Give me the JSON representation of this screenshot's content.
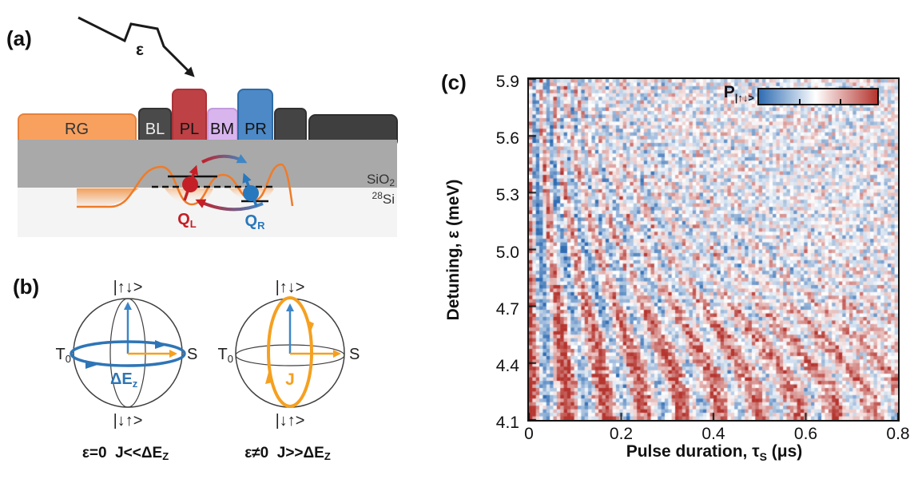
{
  "panel_a": {
    "label": "(a)",
    "pulse_label": "ε",
    "gates": [
      {
        "label": "RG",
        "color": "#F8A15F",
        "border": "#E5823C",
        "text_color": "#333333"
      },
      {
        "label": "BL",
        "color": "#4A4A4A",
        "border": "#353535",
        "text_color": "#EDEDED"
      },
      {
        "label": "PL",
        "color": "#BE4145",
        "border": "#A93438",
        "text_color": "#141414"
      },
      {
        "label": "BM",
        "color": "#D9B5EE",
        "border": "#C39BDD",
        "text_color": "#141414"
      },
      {
        "label": "PR",
        "color": "#4C89C6",
        "border": "#2F6BA7",
        "text_color": "#141414"
      },
      {
        "label": "",
        "color": "#444444",
        "border": "#323232",
        "text_color": "#EDEDED"
      },
      {
        "label": "",
        "color": "#3F3F3F",
        "border": "#2E2E2E",
        "text_color": "#EDEDED"
      }
    ],
    "oxide_label": {
      "main": "SiO",
      "sub": "2"
    },
    "substrate_label": {
      "sup": "28",
      "main": "Si"
    },
    "qubit_left": {
      "main": "Q",
      "sub": "L",
      "color": "#C41F26"
    },
    "qubit_right": {
      "main": "Q",
      "sub": "R",
      "color": "#2878BE"
    },
    "colors": {
      "oxide": "#A9A9A9",
      "substrate": "#F4F4F4",
      "potential_curve": "#F07B28"
    }
  },
  "panel_b": {
    "label": "(b)",
    "sphere_left": {
      "top_state": "|↑↓>",
      "bottom_state": "|↓↑>",
      "left_main": "T",
      "left_sub": "0",
      "right_state": "S",
      "rotation_main": "ΔE",
      "rotation_sub": "z",
      "rotation_color": "#2E75B6",
      "caption_main": "ε=0  J<<ΔE",
      "caption_sub": "Z"
    },
    "sphere_right": {
      "top_state": "|↑↓>",
      "bottom_state": "|↓↑>",
      "left_main": "T",
      "left_sub": "0",
      "right_state": "S",
      "rotation_main": "J",
      "rotation_sub": "",
      "rotation_color": "#F5A020",
      "caption_main": "ε≠0  J>>ΔE",
      "caption_sub": "Z"
    },
    "colors": {
      "z_axis_arrow": "#3E86C8",
      "x_axis_arrow": "#F5A020",
      "wireframe": "#3F3F3F"
    }
  },
  "panel_c": {
    "label": "(c)"
  },
  "chart_data": {
    "type": "heatmap",
    "title": "",
    "xlabel_parts": {
      "pre": "Pulse duration, τ",
      "sub": "S",
      "post": " (μs)"
    },
    "ylabel": "Detuning, ε (meV)",
    "xlim": [
      0,
      0.8
    ],
    "ylim": [
      4.1,
      5.9
    ],
    "x_ticks": [
      0,
      0.2,
      0.4,
      0.6,
      0.8
    ],
    "x_tick_labels": [
      "0",
      "0.2",
      "0.4",
      "0.6",
      "0.8"
    ],
    "y_ticks": [
      5.9,
      5.6,
      5.3,
      5.0,
      4.7,
      4.4,
      4.1
    ],
    "y_tick_labels": [
      "5.9",
      "5.6",
      "5.3",
      "5.0",
      "4.7",
      "4.4",
      "4.1"
    ],
    "grid": false,
    "colorbar": {
      "label_main": "P",
      "label_sub": "|↑↓>",
      "colors": [
        "#2F6CB3",
        "#FFFFFF",
        "#B5352F"
      ],
      "tick_positions": [
        0.34,
        0.68
      ]
    },
    "pattern": {
      "description": "Singlet-triplet exchange oscillations P|↑↓>(ε,τS): probability oscillates in pulse duration with frequency increasing with detuning; coherence decays faster at large detuning; red-shifted baseline below ε≈4.68 meV; measurement noise speckle throughout.",
      "cols": 106,
      "rows": 96,
      "freq_base_per_us": 12,
      "freq_span_per_us": 28,
      "freq_exponent": 1.8,
      "decay_tau0_us": 1.2,
      "decay_scale_mev": 0.75,
      "contrast": 0.82,
      "offset_low_eps": 0.25,
      "offset_high_eps": -0.05,
      "offset_transition_mev": 4.68,
      "transition_width_mev": 0.06,
      "noise_sigma": 0.29,
      "seed": 20
    }
  }
}
